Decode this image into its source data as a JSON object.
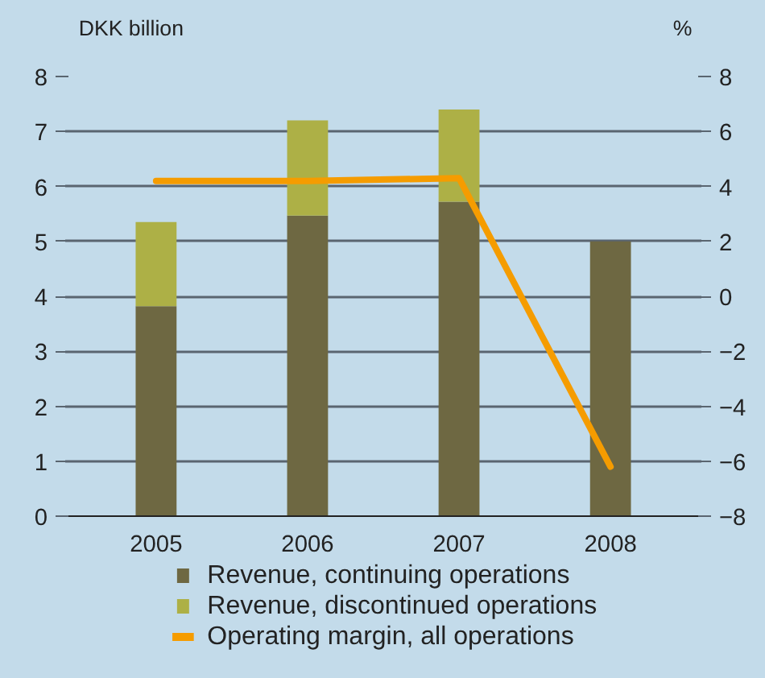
{
  "chart_data": {
    "type": "bar",
    "stacked": true,
    "ylabel": "DKK billion",
    "y2label": "%",
    "categories": [
      "2005",
      "2006",
      "2007",
      "2008"
    ],
    "series": [
      {
        "name": "Revenue, continuing operations",
        "color": "#6e6842",
        "values": [
          3.82,
          5.47,
          5.72,
          5.0
        ]
      },
      {
        "name": "Revenue, discontinued operations",
        "color": "#adb046",
        "values": [
          1.53,
          1.73,
          1.68,
          null
        ]
      },
      {
        "name": "Operating margin, all operations",
        "type": "line",
        "axis": "y2",
        "color": "#f59c00",
        "values": [
          4.2,
          4.2,
          4.3,
          -6.2
        ]
      }
    ],
    "ylim": [
      0,
      8
    ],
    "yticks": [
      0,
      1,
      2,
      3,
      4,
      5,
      6,
      7,
      8
    ],
    "y2lim": [
      -8,
      8
    ],
    "y2ticks": [
      -8,
      -6,
      -4,
      -2,
      0,
      2,
      4,
      6,
      8
    ],
    "grid": "y",
    "legend": "bottom"
  }
}
